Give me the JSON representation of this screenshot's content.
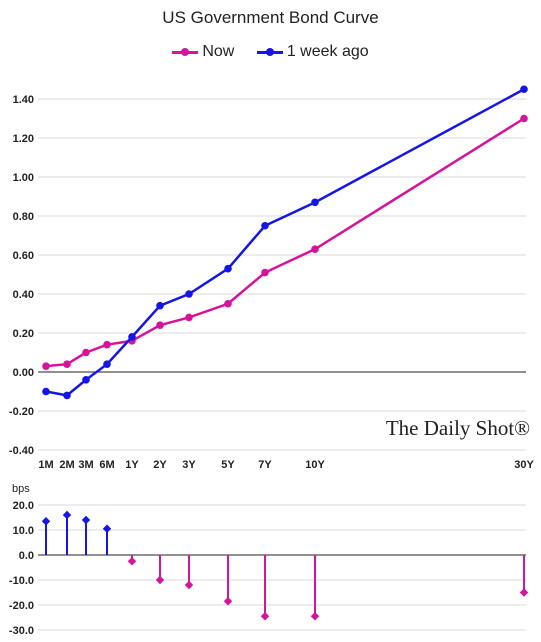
{
  "chart_data": [
    {
      "type": "line",
      "title": "US Government Bond Curve",
      "categories": [
        "1M",
        "2M",
        "3M",
        "6M",
        "1Y",
        "2Y",
        "3Y",
        "5Y",
        "7Y",
        "10Y",
        "30Y"
      ],
      "x_years": [
        0.0833,
        0.1667,
        0.25,
        0.5,
        1,
        2,
        3,
        5,
        7,
        10,
        30
      ],
      "series": [
        {
          "name": "Now",
          "color": "#d6139b",
          "values": [
            0.03,
            0.04,
            0.1,
            0.14,
            0.16,
            0.24,
            0.28,
            0.35,
            0.51,
            0.63,
            1.3
          ]
        },
        {
          "name": "1 week ago",
          "color": "#1515e8",
          "values": [
            -0.1,
            -0.12,
            -0.04,
            0.04,
            0.18,
            0.34,
            0.4,
            0.53,
            0.75,
            0.87,
            1.45
          ]
        }
      ],
      "y_ticks": [
        "1.40",
        "1.20",
        "1.00",
        "0.80",
        "0.60",
        "0.40",
        "0.20",
        "0.00",
        "-0.20",
        "-0.40"
      ],
      "ylim": [
        -0.4,
        1.5
      ],
      "grid": "horizontal",
      "legend": "top-center",
      "watermark": "The Daily Shot®"
    },
    {
      "type": "bar",
      "ylabel": "bps",
      "categories": [
        "1M",
        "2M",
        "3M",
        "6M",
        "1Y",
        "2Y",
        "3Y",
        "5Y",
        "7Y",
        "10Y",
        "30Y"
      ],
      "values": [
        13.5,
        16.0,
        14.0,
        10.5,
        -2.5,
        -10.0,
        -12.0,
        -18.5,
        -24.5,
        -24.5,
        -15.0
      ],
      "positive_color": "#1515e8",
      "negative_color": "#d6139b",
      "y_ticks": [
        "20.0",
        "10.0",
        "0.0",
        "-10.0",
        "-20.0",
        "-30.0"
      ],
      "ylim": [
        -30,
        20
      ]
    }
  ]
}
